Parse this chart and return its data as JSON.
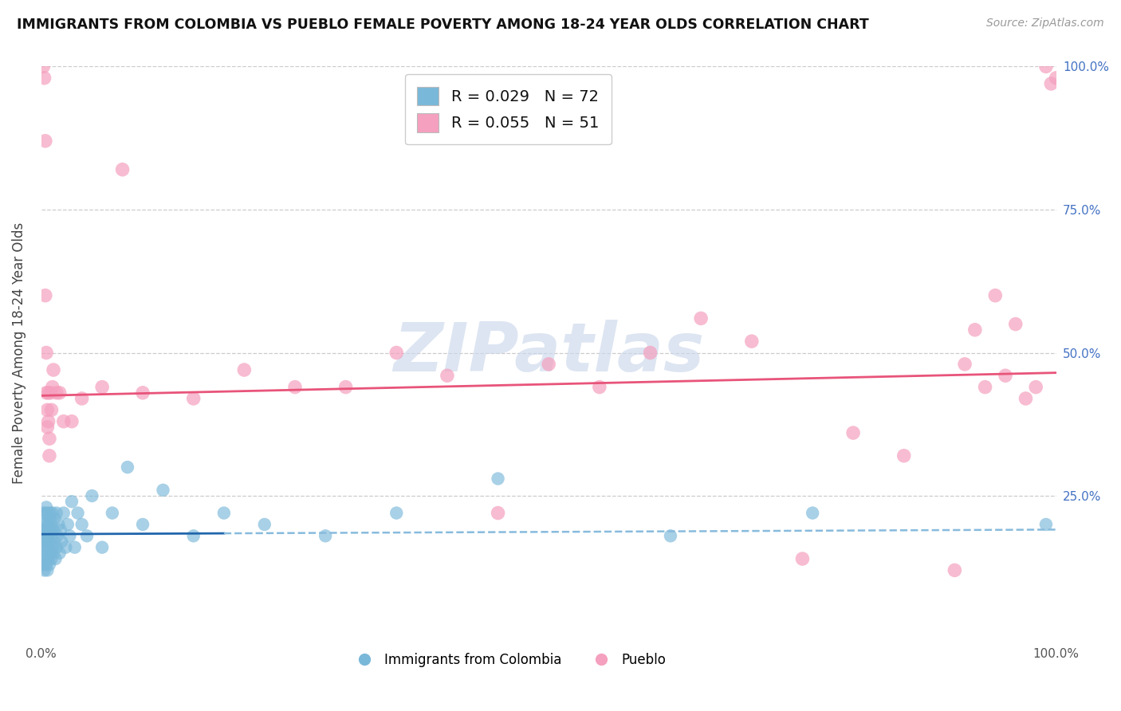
{
  "title": "IMMIGRANTS FROM COLOMBIA VS PUEBLO FEMALE POVERTY AMONG 18-24 YEAR OLDS CORRELATION CHART",
  "source": "Source: ZipAtlas.com",
  "ylabel": "Female Poverty Among 18-24 Year Olds",
  "watermark": "ZIPatlas",
  "blue_label": "Immigrants from Colombia",
  "pink_label": "Pueblo",
  "blue_R": 0.029,
  "blue_N": 72,
  "pink_R": 0.055,
  "pink_N": 51,
  "blue_color": "#7ab8d9",
  "pink_color": "#f5a0be",
  "blue_line_color": "#2166ac",
  "pink_line_color": "#e8547a",
  "blue_line_color_dash": "#88bbdd",
  "bg_color": "#ffffff",
  "grid_color": "#cccccc",
  "title_color": "#111111",
  "source_color": "#999999",
  "watermark_color": "#ccd8ec",
  "ytick_color": "#4472c4",
  "xtick_color": "#555555",
  "blue_x": [
    0.001,
    0.002,
    0.002,
    0.002,
    0.003,
    0.003,
    0.003,
    0.003,
    0.004,
    0.004,
    0.004,
    0.004,
    0.005,
    0.005,
    0.005,
    0.005,
    0.005,
    0.006,
    0.006,
    0.006,
    0.006,
    0.007,
    0.007,
    0.007,
    0.007,
    0.008,
    0.008,
    0.008,
    0.009,
    0.009,
    0.009,
    0.01,
    0.01,
    0.01,
    0.011,
    0.011,
    0.012,
    0.012,
    0.013,
    0.013,
    0.014,
    0.015,
    0.015,
    0.016,
    0.017,
    0.018,
    0.019,
    0.02,
    0.022,
    0.024,
    0.026,
    0.028,
    0.03,
    0.033,
    0.036,
    0.04,
    0.045,
    0.05,
    0.06,
    0.07,
    0.085,
    0.1,
    0.12,
    0.15,
    0.18,
    0.22,
    0.28,
    0.35,
    0.45,
    0.62,
    0.76,
    0.99
  ],
  "blue_y": [
    0.17,
    0.13,
    0.19,
    0.22,
    0.15,
    0.18,
    0.2,
    0.12,
    0.16,
    0.19,
    0.22,
    0.14,
    0.17,
    0.2,
    0.13,
    0.18,
    0.23,
    0.15,
    0.19,
    0.22,
    0.12,
    0.16,
    0.2,
    0.14,
    0.18,
    0.17,
    0.21,
    0.13,
    0.19,
    0.15,
    0.22,
    0.18,
    0.14,
    0.2,
    0.16,
    0.22,
    0.15,
    0.19,
    0.17,
    0.21,
    0.14,
    0.22,
    0.16,
    0.18,
    0.2,
    0.15,
    0.19,
    0.17,
    0.22,
    0.16,
    0.2,
    0.18,
    0.24,
    0.16,
    0.22,
    0.2,
    0.18,
    0.25,
    0.16,
    0.22,
    0.3,
    0.2,
    0.26,
    0.18,
    0.22,
    0.2,
    0.18,
    0.22,
    0.28,
    0.18,
    0.22,
    0.2
  ],
  "pink_x": [
    0.002,
    0.003,
    0.004,
    0.004,
    0.005,
    0.005,
    0.006,
    0.006,
    0.007,
    0.007,
    0.008,
    0.008,
    0.009,
    0.01,
    0.011,
    0.012,
    0.015,
    0.018,
    0.022,
    0.03,
    0.04,
    0.06,
    0.08,
    0.1,
    0.15,
    0.2,
    0.25,
    0.3,
    0.35,
    0.4,
    0.45,
    0.5,
    0.55,
    0.6,
    0.65,
    0.7,
    0.75,
    0.8,
    0.85,
    0.9,
    0.91,
    0.92,
    0.93,
    0.94,
    0.95,
    0.96,
    0.97,
    0.98,
    0.99,
    0.995,
    1.0
  ],
  "pink_y": [
    1.0,
    0.98,
    0.87,
    0.6,
    0.5,
    0.43,
    0.4,
    0.37,
    0.43,
    0.38,
    0.35,
    0.32,
    0.43,
    0.4,
    0.44,
    0.47,
    0.43,
    0.43,
    0.38,
    0.38,
    0.42,
    0.44,
    0.82,
    0.43,
    0.42,
    0.47,
    0.44,
    0.44,
    0.5,
    0.46,
    0.22,
    0.48,
    0.44,
    0.5,
    0.56,
    0.52,
    0.14,
    0.36,
    0.32,
    0.12,
    0.48,
    0.54,
    0.44,
    0.6,
    0.46,
    0.55,
    0.42,
    0.44,
    1.0,
    0.97,
    0.98
  ]
}
